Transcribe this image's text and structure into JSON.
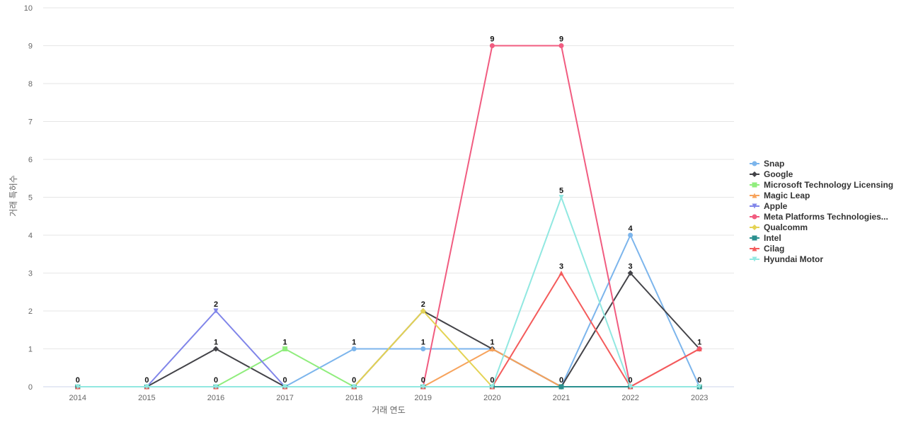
{
  "chart_data": {
    "type": "line",
    "title": "",
    "xlabel": "거래 연도",
    "ylabel": "거래 특허수",
    "ylim": [
      0,
      10
    ],
    "yticks": [
      0,
      1,
      2,
      3,
      4,
      5,
      6,
      7,
      8,
      9,
      10
    ],
    "categories": [
      "2014",
      "2015",
      "2016",
      "2017",
      "2018",
      "2019",
      "2020",
      "2021",
      "2022",
      "2023"
    ],
    "grid": true,
    "legend_position": "right",
    "series": [
      {
        "name": "Snap",
        "color": "#7cb5ec",
        "marker": "circle",
        "values": [
          0,
          0,
          0,
          0,
          1,
          1,
          1,
          0,
          4,
          0
        ]
      },
      {
        "name": "Google",
        "color": "#434348",
        "marker": "diamond",
        "values": [
          0,
          0,
          1,
          0,
          0,
          2,
          1,
          0,
          3,
          1
        ]
      },
      {
        "name": "Microsoft Technology Licensing",
        "color": "#90ed7d",
        "marker": "square",
        "values": [
          0,
          0,
          0,
          1,
          0,
          0,
          0,
          0,
          0,
          0
        ]
      },
      {
        "name": "Magic Leap",
        "color": "#f7a35c",
        "marker": "triangle",
        "values": [
          0,
          0,
          0,
          0,
          0,
          0,
          1,
          0,
          0,
          0
        ]
      },
      {
        "name": "Apple",
        "color": "#8085e9",
        "marker": "triangle-down",
        "values": [
          0,
          0,
          2,
          0,
          0,
          0,
          0,
          0,
          0,
          0
        ]
      },
      {
        "name": "Meta Platforms Technologies...",
        "color": "#f15c80",
        "marker": "circle",
        "values": [
          0,
          0,
          0,
          0,
          0,
          0,
          9,
          9,
          0,
          1
        ]
      },
      {
        "name": "Qualcomm",
        "color": "#e4d354",
        "marker": "diamond",
        "values": [
          0,
          0,
          0,
          0,
          0,
          2,
          0,
          0,
          0,
          0
        ]
      },
      {
        "name": "Intel",
        "color": "#2b908f",
        "marker": "square",
        "values": [
          0,
          0,
          0,
          0,
          0,
          0,
          0,
          0,
          0,
          0
        ]
      },
      {
        "name": "Cilag",
        "color": "#f45b5b",
        "marker": "triangle",
        "values": [
          0,
          0,
          0,
          0,
          0,
          0,
          0,
          3,
          0,
          1
        ]
      },
      {
        "name": "Hyundai Motor",
        "color": "#91e8e1",
        "marker": "triangle-down",
        "values": [
          0,
          0,
          0,
          0,
          0,
          0,
          0,
          5,
          0,
          0
        ]
      }
    ],
    "data_labels": [
      {
        "x": "2014",
        "value": 0
      },
      {
        "x": "2015",
        "value": 0
      },
      {
        "x": "2016",
        "value": 2
      },
      {
        "x": "2016",
        "value": 1
      },
      {
        "x": "2016",
        "value": 0
      },
      {
        "x": "2017",
        "value": 1
      },
      {
        "x": "2017",
        "value": 0
      },
      {
        "x": "2018",
        "value": 1
      },
      {
        "x": "2018",
        "value": 0
      },
      {
        "x": "2019",
        "value": 2
      },
      {
        "x": "2019",
        "value": 1
      },
      {
        "x": "2019",
        "value": 0
      },
      {
        "x": "2020",
        "value": 9
      },
      {
        "x": "2020",
        "value": 1
      },
      {
        "x": "2020",
        "value": 0
      },
      {
        "x": "2021",
        "value": 9
      },
      {
        "x": "2021",
        "value": 5
      },
      {
        "x": "2021",
        "value": 3
      },
      {
        "x": "2021",
        "value": 0
      },
      {
        "x": "2022",
        "value": 4
      },
      {
        "x": "2022",
        "value": 3
      },
      {
        "x": "2022",
        "value": 0
      },
      {
        "x": "2023",
        "value": 1
      },
      {
        "x": "2023",
        "value": 0
      }
    ]
  }
}
